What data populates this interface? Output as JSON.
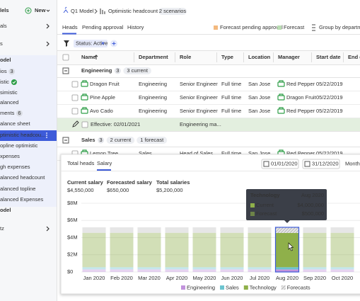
{
  "sidebar": {
    "title": "lels",
    "new_button": "New",
    "items": [
      {
        "label": "als"
      },
      {
        "label": "s"
      },
      {
        "label": "odel"
      },
      {
        "label": "ios",
        "badge": "3"
      },
      {
        "label": "istic"
      },
      {
        "label": "simistic"
      },
      {
        "label": "alanced"
      },
      {
        "label": "ments",
        "badge": "6"
      },
      {
        "label": "alance sheet"
      },
      {
        "label": "ptimistic headcou..."
      },
      {
        "label": "opline optimistic"
      },
      {
        "label": "xpenses"
      },
      {
        "label": "gh expenses"
      },
      {
        "label": "alanced headcount"
      },
      {
        "label": "alanced topline"
      },
      {
        "label": "alanced Expenses"
      },
      {
        "label": "odel"
      },
      {
        "label": "tz"
      }
    ]
  },
  "topbar": {
    "model": "Q1 Model",
    "scenario": "Optimistic headcount",
    "badge": "2 scenarios"
  },
  "tabs": [
    "Heads",
    "Pending approval",
    "History"
  ],
  "legend": [
    "Forecast pending approval",
    "Forecast",
    "Group by departme"
  ],
  "filter": "Status: Active",
  "table": {
    "columns": [
      "Name",
      "Department",
      "Role",
      "Type",
      "Location",
      "Manager",
      "Start date",
      "End d"
    ],
    "groups": [
      {
        "name": "Engineering",
        "count": "3",
        "badges": [
          "3 current"
        ],
        "rows": [
          [
            "Dragon Fruit",
            "Engineering",
            "Senior Engineer",
            "Full time",
            "San Jose",
            "Red Pepper",
            "05/22/2019"
          ],
          [
            "Pine Apple",
            "Engineering",
            "Senior Engineer",
            "Full time",
            "San Jose",
            "Dragon Fruit",
            "05/22/2019"
          ],
          [
            "Avo Cado",
            "Engineering",
            "Senior Engineer",
            "Full time",
            "San Jose",
            "Red Pepper",
            "05/22/2019"
          ]
        ],
        "effective": {
          "label": "Effective: 02/01/2021",
          "role": "Engineering ma..."
        }
      },
      {
        "name": "Sales",
        "count": "3",
        "badges": [
          "2 current",
          "1 forecast"
        ],
        "rows": [
          [
            "Lemon Tree",
            "Sales",
            "Head of Sales",
            "Full time",
            "San Jose",
            "Red Pepper",
            "05/22/2019"
          ]
        ]
      }
    ]
  },
  "popup": {
    "tabs": [
      "Total heads",
      "Salary"
    ],
    "start": "01/01/2020",
    "end": "31/12/2020",
    "period": "Month",
    "stats": [
      {
        "label": "Current salary",
        "value": "$4,550,000"
      },
      {
        "label": "Forecasted salary",
        "value": "$650,000"
      },
      {
        "label": "Total salaries",
        "value": "$5,200,000"
      }
    ],
    "tooltip": {
      "title": "Technology",
      "date": "Aug 2020",
      "rows": [
        {
          "label": "Current",
          "value": "$4,000,000"
        },
        {
          "label": "Forecast",
          "value": "$500,000"
        }
      ]
    }
  },
  "chart_data": {
    "type": "bar",
    "stacked": true,
    "categories": [
      "Jan 2020",
      "Feb 2020",
      "Mar 2020",
      "Apr 2020",
      "May 2020",
      "Jun 2020",
      "Jul 2020",
      "Aug 2020",
      "Sep 2020",
      "Oct 2020"
    ],
    "series": [
      {
        "name": "Engineering",
        "color": "#c293dc",
        "values": [
          300000,
          300000,
          300000,
          300000,
          300000,
          300000,
          300000,
          300000,
          300000,
          300000
        ]
      },
      {
        "name": "Sales",
        "color": "#6cc4cf",
        "values": [
          250000,
          250000,
          250000,
          250000,
          250000,
          250000,
          250000,
          250000,
          250000,
          250000
        ]
      },
      {
        "name": "Technology",
        "color": "#8fb04a",
        "values": [
          4000000,
          4000000,
          4000000,
          4000000,
          4000000,
          4000000,
          4000000,
          4000000,
          4000000,
          4000000
        ]
      },
      {
        "name": "Forecasts",
        "color": "#b8b8b8",
        "values": [
          650000,
          650000,
          650000,
          650000,
          650000,
          650000,
          650000,
          650000,
          650000,
          650000
        ]
      }
    ],
    "ylim": [
      0,
      8000000
    ],
    "yticks": [
      {
        "value": 0,
        "label": "$0"
      },
      {
        "value": 2000000,
        "label": "$2M"
      },
      {
        "value": 4000000,
        "label": "$4M"
      },
      {
        "value": 6000000,
        "label": "$6M"
      },
      {
        "value": 8000000,
        "label": "$8M"
      }
    ],
    "grid": true
  }
}
